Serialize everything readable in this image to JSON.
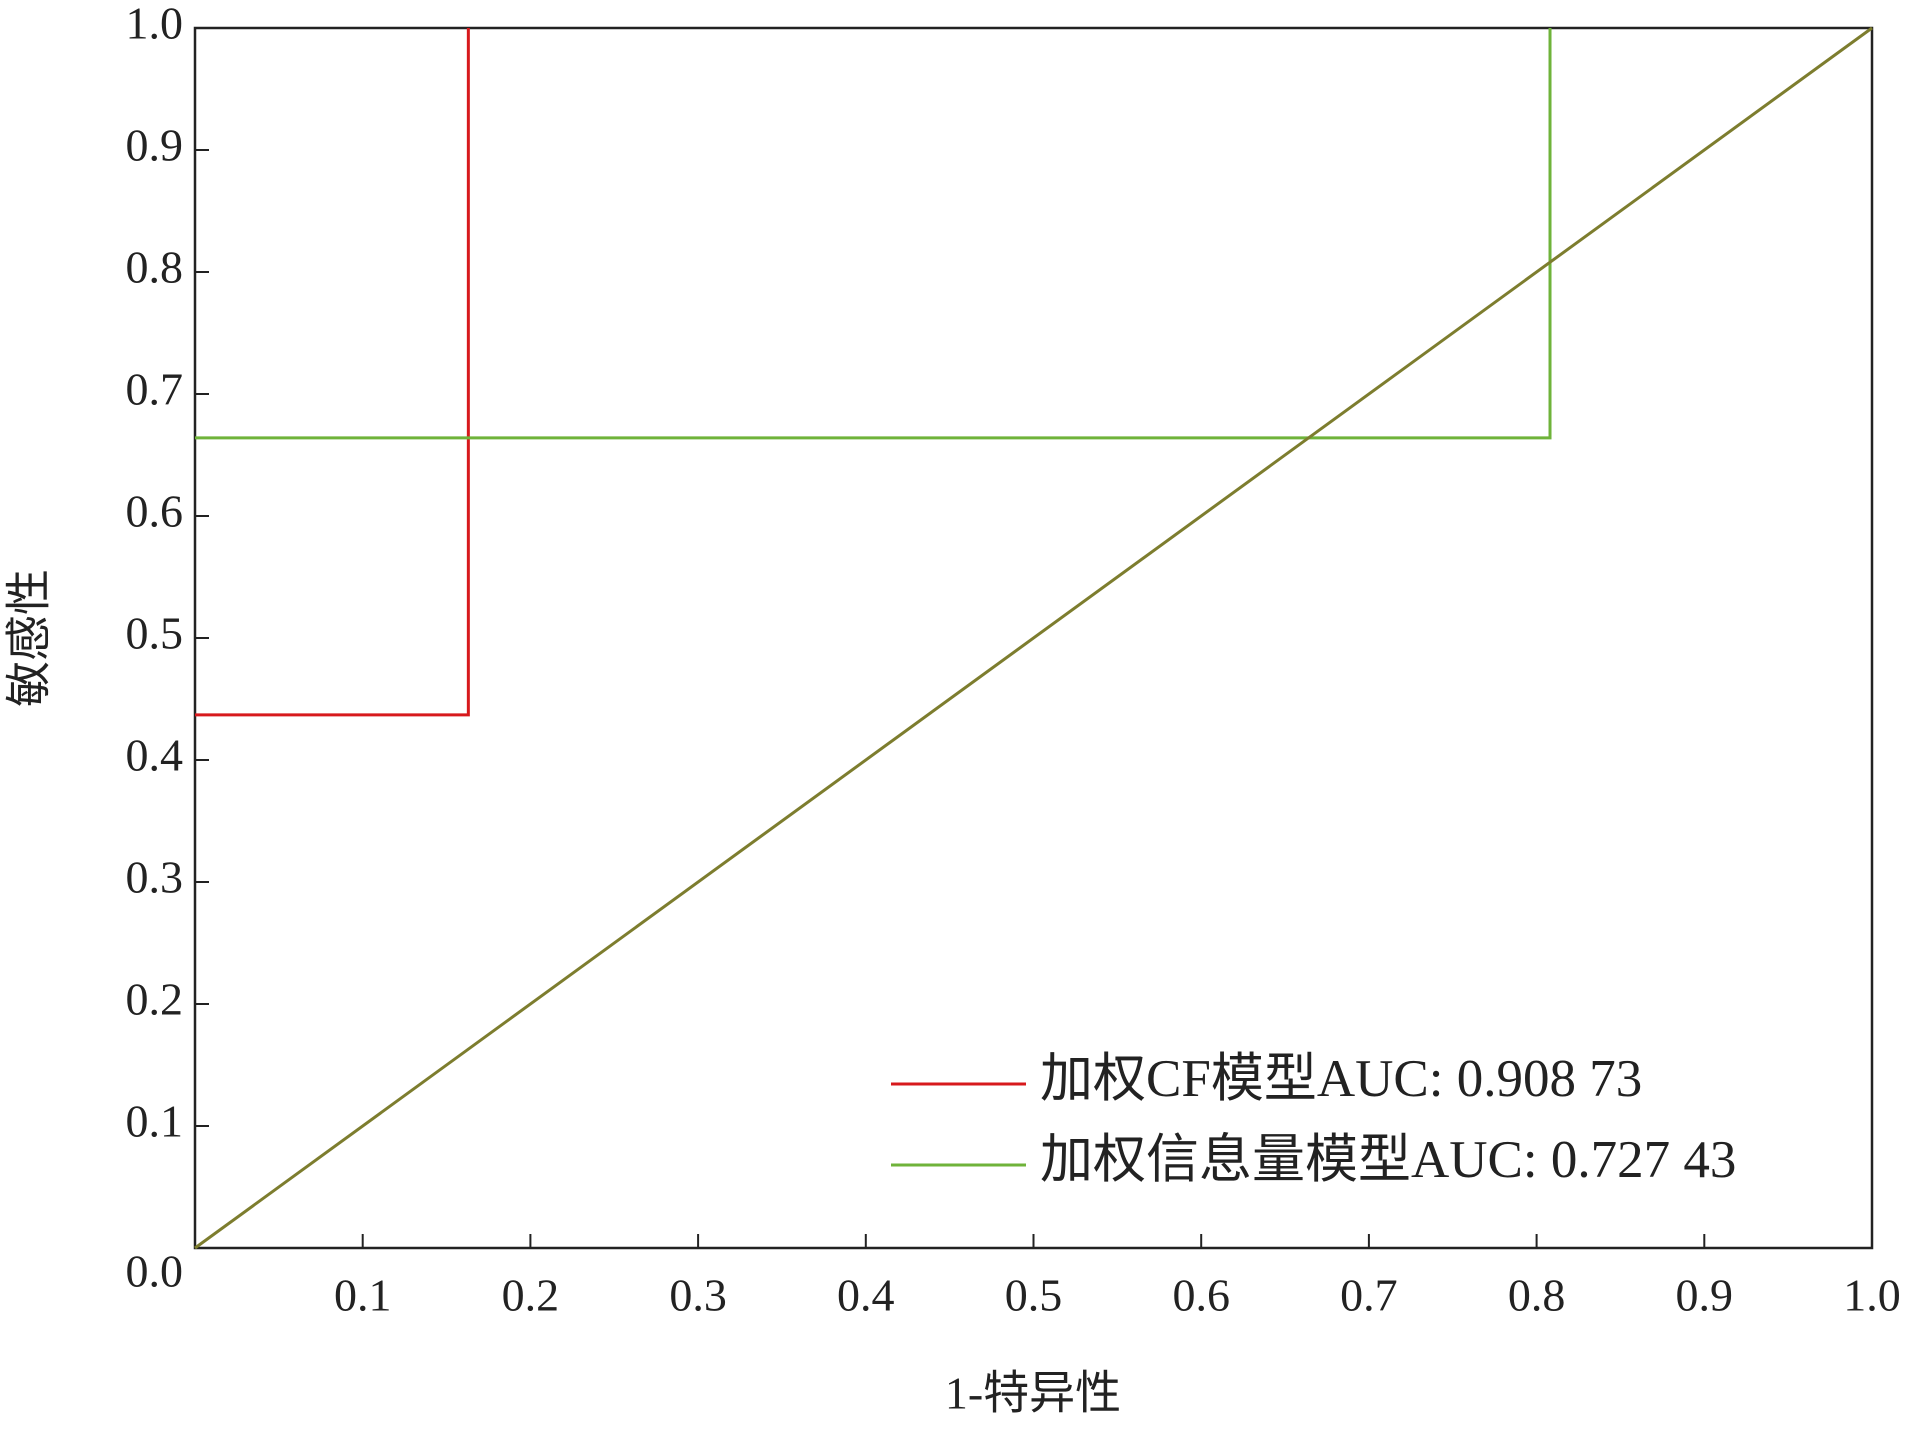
{
  "chart_data": {
    "type": "line",
    "x_label": "1-特异性",
    "y_label": "敏感性",
    "xlim": [
      0,
      1
    ],
    "ylim": [
      0,
      1
    ],
    "xticks": [
      0.1,
      0.2,
      0.3,
      0.4,
      0.5,
      0.6,
      0.7,
      0.8,
      0.9,
      {
        "value": 1,
        "label": "1.0"
      }
    ],
    "yticks": [
      {
        "value": 0,
        "label": "0.0"
      },
      0.1,
      0.2,
      0.3,
      0.4,
      0.5,
      0.6,
      0.7,
      0.8,
      0.9,
      {
        "value": 1,
        "label": "1.0"
      }
    ],
    "legend": "lower right",
    "series": [
      {
        "name": "加权CF模型AUC: 0.908 73",
        "color": "#d7191c",
        "x": [
          0,
          0.163,
          0.163
        ],
        "values": [
          0.437,
          0.437,
          1
        ]
      },
      {
        "name": "加权信息量模型AUC: 0.727 43",
        "color": "#6fb33a",
        "x": [
          0,
          0.808,
          0.808
        ],
        "values": [
          0.664,
          0.664,
          1
        ]
      },
      {
        "color": "#7d7d2e",
        "x": [
          0,
          1
        ],
        "values": [
          0,
          1
        ]
      }
    ]
  }
}
